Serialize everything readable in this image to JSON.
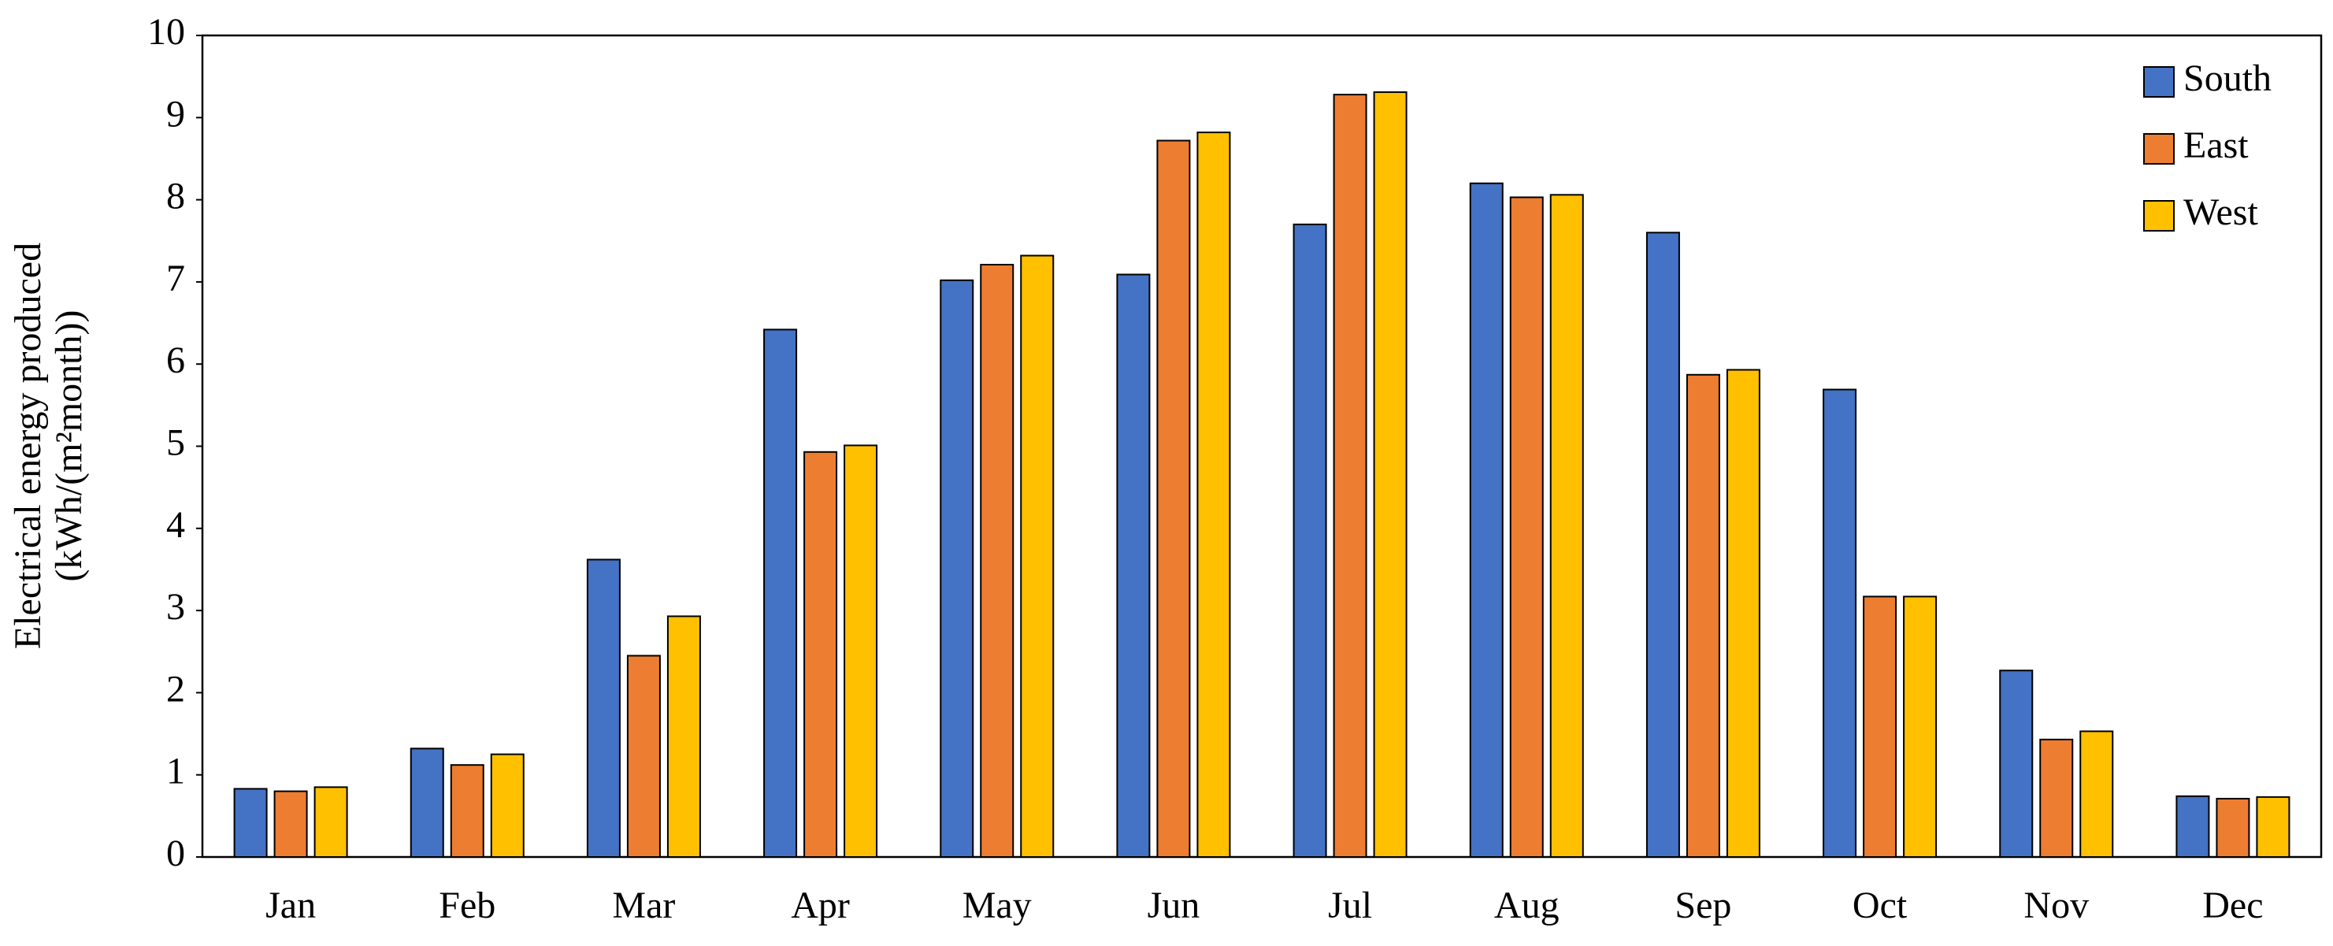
{
  "chart_data": {
    "type": "bar",
    "y_label": [
      "Electrical energy produced",
      "(kWh/(m²month))"
    ],
    "categories": [
      "Jan",
      "Feb",
      "Mar",
      "Apr",
      "May",
      "Jun",
      "Jul",
      "Aug",
      "Sep",
      "Oct",
      "Nov",
      "Dec"
    ],
    "series": [
      {
        "name": "South",
        "color": "#4472c4",
        "values": [
          0.83,
          1.32,
          3.62,
          6.42,
          7.02,
          7.09,
          7.7,
          8.2,
          7.6,
          5.69,
          2.27,
          0.74
        ]
      },
      {
        "name": "East",
        "color": "#ed7d31",
        "values": [
          0.8,
          1.12,
          2.45,
          4.93,
          7.21,
          8.72,
          9.28,
          8.03,
          5.87,
          3.17,
          1.43,
          0.71
        ]
      },
      {
        "name": "West",
        "color": "#ffc000",
        "values": [
          0.85,
          1.25,
          2.93,
          5.01,
          7.32,
          8.82,
          9.31,
          8.06,
          5.93,
          3.17,
          1.53,
          0.73
        ]
      }
    ],
    "ylim": [
      0,
      10
    ],
    "yticks": [
      0,
      1,
      2,
      3,
      4,
      5,
      6,
      7,
      8,
      9,
      10
    ],
    "grid": false,
    "legend": "top-right"
  }
}
